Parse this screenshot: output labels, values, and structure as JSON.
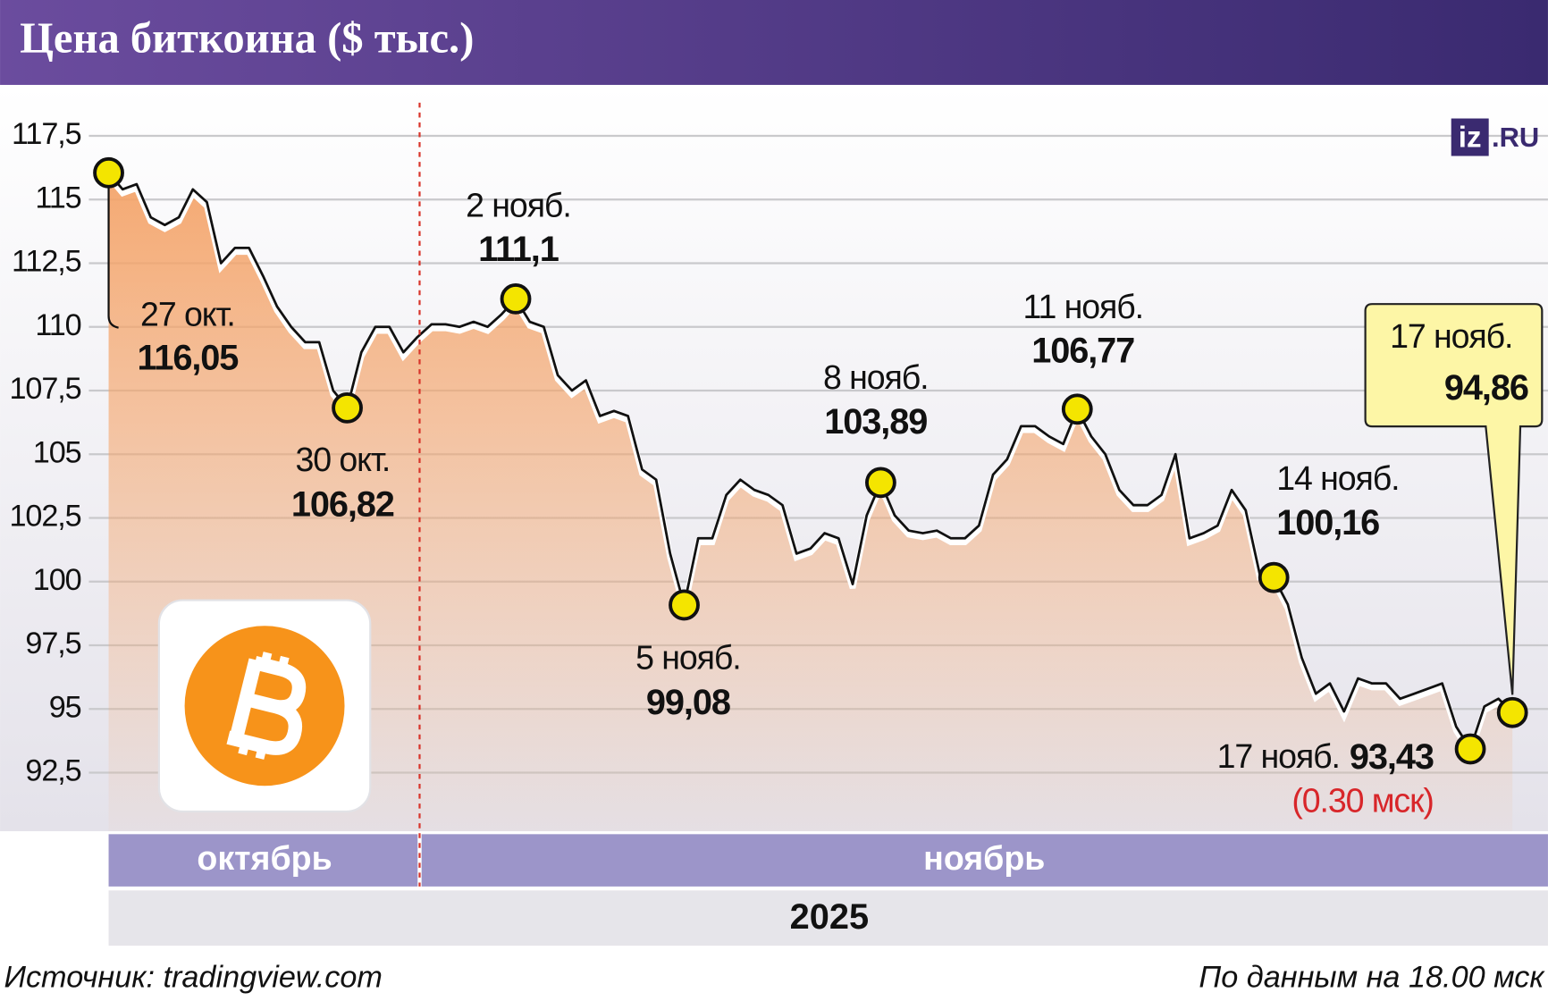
{
  "chart_data": {
    "type": "line",
    "title": "Цена биткоина ($ тыс.)",
    "logo": [
      "iz",
      ".RU"
    ],
    "months": [
      "октябрь",
      "ноябрь"
    ],
    "year": "2025",
    "source": "Источник: tradingview.com",
    "as_of": "По данным на 18.00 мск",
    "ylim": [
      90.2,
      119.5
    ],
    "yticks": [
      {
        "value": 92.5,
        "label": "92,5"
      },
      95,
      {
        "value": 97.5,
        "label": "97,5"
      },
      100,
      {
        "value": 102.5,
        "label": "102,5"
      },
      105,
      {
        "value": 107.5,
        "label": "107,5"
      },
      110,
      {
        "value": 112.5,
        "label": "112,5"
      },
      115,
      {
        "value": 117.5,
        "label": "117,5"
      }
    ],
    "grid": true,
    "color": "#111111",
    "fill_color": "#f4a46a",
    "categories": [
      null,
      null,
      null,
      null,
      null,
      null,
      null,
      null,
      null,
      null,
      null,
      null,
      null,
      null,
      null,
      null,
      null,
      null,
      null,
      null,
      null,
      null,
      null,
      null,
      null,
      null,
      null,
      null,
      null,
      null,
      null,
      null,
      null,
      null,
      null,
      null,
      null,
      null,
      null,
      null,
      null,
      null,
      null,
      null,
      null,
      null,
      null,
      null,
      null,
      null,
      null,
      null,
      null,
      null,
      null,
      null,
      null,
      null,
      null,
      null,
      null,
      null,
      null,
      null,
      null,
      null,
      null,
      null,
      null,
      null,
      null,
      null,
      null,
      null,
      null,
      null,
      null,
      null,
      null,
      null,
      null,
      null,
      null,
      null,
      null,
      null,
      null,
      null,
      null,
      null,
      null,
      null,
      null,
      null,
      null,
      null,
      null,
      null,
      null,
      null,
      null
    ],
    "values": [
      116.05,
      115.4,
      115.6,
      114.3,
      114.0,
      114.3,
      115.4,
      114.9,
      112.5,
      113.1,
      113.1,
      112.0,
      110.8,
      110.0,
      109.4,
      109.4,
      107.5,
      106.82,
      109.0,
      110.0,
      110.0,
      109.0,
      109.6,
      110.1,
      110.1,
      110.0,
      110.2,
      110.0,
      110.5,
      111.1,
      110.2,
      110.0,
      108.1,
      107.5,
      107.9,
      106.5,
      106.7,
      106.5,
      104.4,
      104.0,
      101.1,
      99.08,
      101.7,
      101.7,
      103.4,
      104.0,
      103.6,
      103.4,
      103.0,
      101.1,
      101.3,
      101.9,
      101.7,
      99.9,
      102.6,
      103.89,
      102.6,
      102.0,
      101.9,
      102.0,
      101.7,
      101.7,
      102.2,
      104.2,
      104.8,
      106.1,
      106.1,
      105.7,
      105.4,
      106.77,
      105.7,
      105.0,
      103.6,
      103.0,
      103.0,
      103.4,
      105.0,
      101.7,
      101.9,
      102.2,
      103.6,
      102.8,
      100.3,
      100.16,
      99.1,
      97.0,
      95.6,
      96.0,
      94.9,
      96.2,
      96.0,
      96.0,
      95.4,
      95.6,
      95.8,
      96.0,
      94.3,
      93.43,
      95.1,
      95.4,
      94.86
    ],
    "annotations": [
      {
        "date": "27 окт.",
        "value": 116.05,
        "value_label": "116,05"
      },
      {
        "date": "30 окт.",
        "value": 106.82,
        "value_label": "106,82"
      },
      {
        "date": "2 нояб.",
        "value": 111.1,
        "value_label": "111,1"
      },
      {
        "date": "5 нояб.",
        "value": 99.08,
        "value_label": "99,08"
      },
      {
        "date": "8 нояб.",
        "value": 103.89,
        "value_label": "103,89"
      },
      {
        "date": "11 нояб.",
        "value": 106.77,
        "value_label": "106,77"
      },
      {
        "date": "14 нояб.",
        "value": 100.16,
        "value_label": "100,16"
      },
      {
        "date": "17 нояб.",
        "value": 93.43,
        "value_label": "93,43",
        "note": "(0.30 мск)"
      }
    ],
    "callout": {
      "date": "17 нояб.",
      "value": 94.86,
      "value_label": "94,86"
    }
  }
}
